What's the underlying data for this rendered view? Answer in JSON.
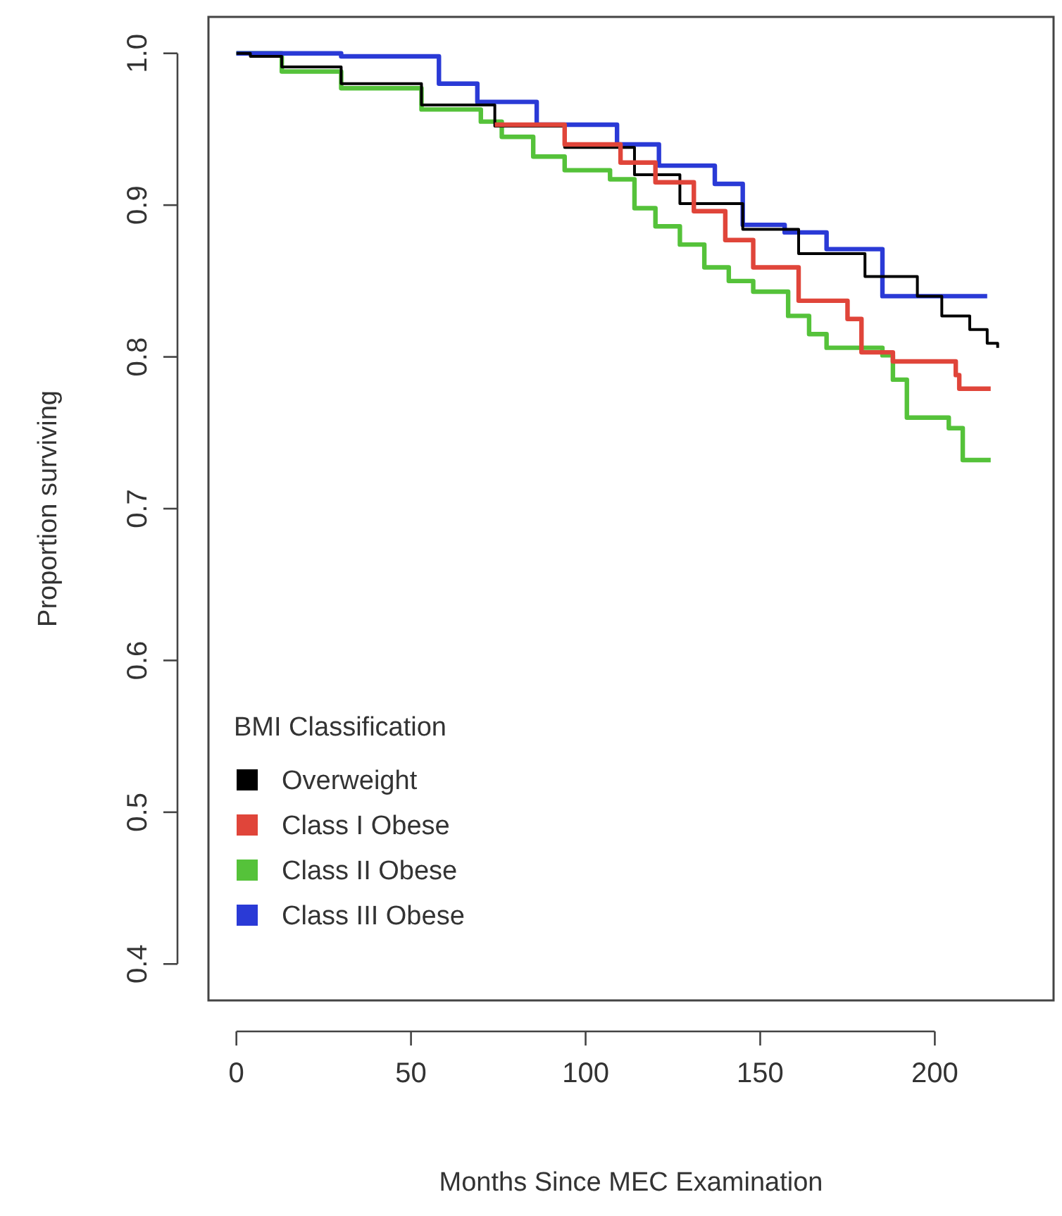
{
  "chart_data": {
    "type": "step",
    "xlabel": "Months Since MEC Examination",
    "ylabel": "Proportion surviving",
    "legend_title": "BMI Classification",
    "legend": "bottom left",
    "grid": false,
    "line_style": "solid",
    "marker": "none",
    "xlim": [
      -8,
      234
    ],
    "ylim": [
      0.376,
      1.024
    ],
    "xticks": [
      0,
      50,
      100,
      150,
      200
    ],
    "yticks": [
      {
        "value": 0.4,
        "label": "0.4"
      },
      {
        "value": 0.5,
        "label": "0.5"
      },
      {
        "value": 0.6,
        "label": "0.6"
      },
      {
        "value": 0.7,
        "label": "0.7"
      },
      {
        "value": 0.8,
        "label": "0.8"
      },
      {
        "value": 0.9,
        "label": "0.9"
      },
      {
        "value": 1.0,
        "label": "1.0"
      }
    ],
    "series": [
      {
        "name": "Overweight",
        "color": "#000000",
        "x": [
          0,
          4,
          13,
          30,
          53,
          74,
          94,
          114,
          127,
          145,
          161,
          180,
          195,
          202,
          210,
          215,
          218
        ],
        "values": [
          1.0,
          0.998,
          0.991,
          0.98,
          0.966,
          0.952,
          0.938,
          0.92,
          0.901,
          0.884,
          0.868,
          0.853,
          0.84,
          0.827,
          0.818,
          0.809,
          0.806
        ]
      },
      {
        "name": "Class I Obese",
        "color": "#e0453a",
        "x": [
          74,
          94,
          110,
          120,
          131,
          140,
          148,
          161,
          175,
          179,
          188,
          206,
          207,
          216
        ],
        "values": [
          0.953,
          0.94,
          0.928,
          0.915,
          0.896,
          0.877,
          0.859,
          0.837,
          0.825,
          0.803,
          0.797,
          0.788,
          0.779,
          0.779
        ]
      },
      {
        "name": "Class II Obese",
        "color": "#55c23a",
        "x": [
          0,
          13,
          30,
          53,
          70,
          76,
          85,
          94,
          107,
          114,
          120,
          127,
          134,
          141,
          148,
          158,
          164,
          169,
          185,
          188,
          192,
          204,
          208,
          216
        ],
        "values": [
          1.0,
          0.988,
          0.977,
          0.963,
          0.955,
          0.945,
          0.932,
          0.923,
          0.917,
          0.898,
          0.886,
          0.874,
          0.859,
          0.85,
          0.843,
          0.827,
          0.815,
          0.806,
          0.801,
          0.785,
          0.76,
          0.753,
          0.732,
          0.732
        ]
      },
      {
        "name": "Class III Obese",
        "color": "#2a3ad6",
        "x": [
          0,
          30,
          58,
          69,
          86,
          109,
          121,
          137,
          145,
          157,
          169,
          185,
          215
        ],
        "values": [
          1.0,
          0.998,
          0.98,
          0.968,
          0.953,
          0.94,
          0.926,
          0.914,
          0.887,
          0.882,
          0.871,
          0.84,
          0.84
        ]
      }
    ]
  }
}
